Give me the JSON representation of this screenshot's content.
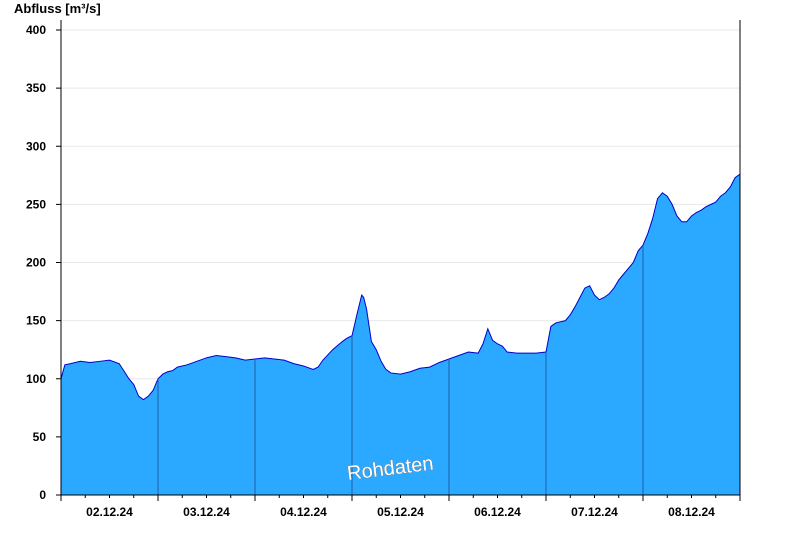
{
  "chart_data": {
    "type": "area",
    "ylabel": "Abfluss [m³/s]",
    "ylim": [
      0,
      400
    ],
    "yticks": [
      "0",
      "50",
      "100",
      "150",
      "200",
      "250",
      "300",
      "350",
      "400"
    ],
    "xticks": [
      "02.12.24",
      "03.12.24",
      "04.12.24",
      "05.12.24",
      "06.12.24",
      "07.12.24",
      "08.12.24"
    ],
    "xlim_days": [
      1,
      8
    ],
    "grid": "horizontal",
    "watermark": "Rohdaten",
    "colors": {
      "fill": "#2ba8ff",
      "line": "#0000cc",
      "day_separator": "#1f5fa6",
      "grid": "#e8e8e8"
    },
    "series": [
      {
        "x_days": [
          1.0,
          1.04,
          1.1,
          1.2,
          1.3,
          1.4,
          1.5,
          1.6,
          1.7,
          1.75,
          1.8,
          1.85,
          1.9,
          1.95,
          2.0,
          2.05,
          2.1,
          2.15,
          2.2,
          2.3,
          2.4,
          2.5,
          2.6,
          2.7,
          2.8,
          2.9,
          3.0,
          3.1,
          3.2,
          3.3,
          3.4,
          3.5,
          3.6,
          3.65,
          3.7,
          3.8,
          3.9,
          3.95,
          4.0,
          4.05,
          4.1,
          4.12,
          4.15,
          4.2,
          4.25,
          4.3,
          4.35,
          4.4,
          4.5,
          4.6,
          4.7,
          4.8,
          4.9,
          5.0,
          5.1,
          5.2,
          5.3,
          5.35,
          5.4,
          5.45,
          5.5,
          5.55,
          5.6,
          5.7,
          5.8,
          5.9,
          6.0,
          6.05,
          6.1,
          6.2,
          6.25,
          6.3,
          6.35,
          6.4,
          6.45,
          6.5,
          6.55,
          6.6,
          6.65,
          6.7,
          6.75,
          6.8,
          6.85,
          6.9,
          6.95,
          7.0,
          7.05,
          7.1,
          7.15,
          7.2,
          7.25,
          7.3,
          7.35,
          7.4,
          7.45,
          7.5,
          7.55,
          7.6,
          7.65,
          7.7,
          7.75,
          7.8,
          7.85,
          7.9,
          7.95,
          8.0
        ],
        "y": [
          100,
          112,
          113,
          115,
          114,
          115,
          116,
          113,
          100,
          95,
          85,
          82,
          85,
          90,
          100,
          104,
          106,
          107,
          110,
          112,
          115,
          118,
          120,
          119,
          118,
          116,
          117,
          118,
          117,
          116,
          113,
          111,
          108,
          110,
          116,
          125,
          132,
          135,
          137,
          155,
          172,
          170,
          160,
          132,
          125,
          115,
          108,
          105,
          104,
          106,
          109,
          110,
          114,
          117,
          120,
          123,
          122,
          130,
          143,
          133,
          130,
          128,
          123,
          122,
          122,
          122,
          123,
          145,
          148,
          150,
          155,
          162,
          170,
          178,
          180,
          172,
          168,
          170,
          173,
          178,
          185,
          190,
          195,
          200,
          210,
          215,
          225,
          238,
          255,
          260,
          257,
          250,
          240,
          235,
          235,
          240,
          243,
          245,
          248,
          250,
          252,
          257,
          260,
          265,
          273,
          276
        ]
      }
    ]
  }
}
